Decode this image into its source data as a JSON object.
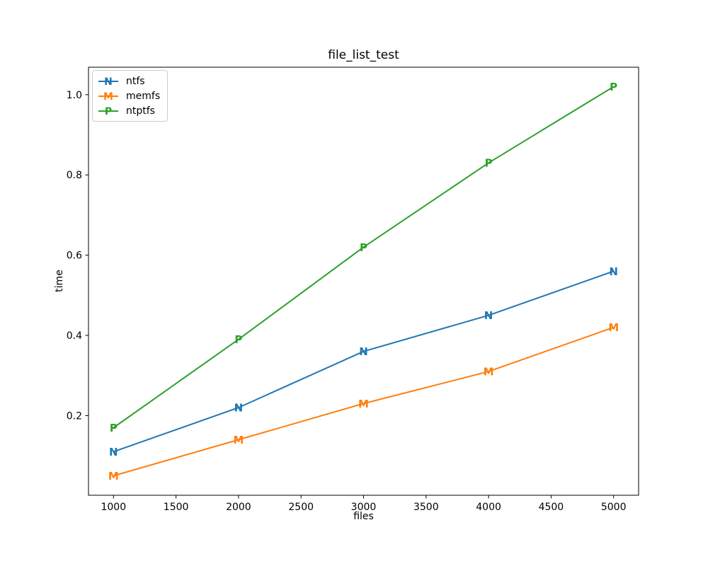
{
  "chart_data": {
    "type": "line",
    "title": "file_list_test",
    "xlabel": "files",
    "ylabel": "time",
    "x": [
      1000,
      2000,
      3000,
      4000,
      5000
    ],
    "series": [
      {
        "name": "ntfs",
        "marker": "N",
        "color": "#1f77b4",
        "values": [
          0.11,
          0.22,
          0.36,
          0.45,
          0.56
        ]
      },
      {
        "name": "memfs",
        "marker": "M",
        "color": "#ff7f0e",
        "values": [
          0.05,
          0.14,
          0.23,
          0.31,
          0.42
        ]
      },
      {
        "name": "ntptfs",
        "marker": "P",
        "color": "#2ca02c",
        "values": [
          0.17,
          0.39,
          0.62,
          0.83,
          1.02
        ]
      }
    ],
    "xlim": [
      800,
      5200
    ],
    "ylim": [
      0.0015,
      1.0685
    ],
    "xticks": [
      1000,
      1500,
      2000,
      2500,
      3000,
      3500,
      4000,
      4500,
      5000
    ],
    "xtick_labels": [
      "1000",
      "1500",
      "2000",
      "2500",
      "3000",
      "3500",
      "4000",
      "4500",
      "5000"
    ],
    "yticks": [
      0.2,
      0.4,
      0.6,
      0.8,
      1.0
    ],
    "ytick_labels": [
      "0.2",
      "0.4",
      "0.6",
      "0.8",
      "1.0"
    ],
    "legend_position": "upper left",
    "grid": false,
    "colors": {
      "background": "#ffffff",
      "spine": "#000000",
      "tick_label": "#000000",
      "legend_border": "#cccccc"
    }
  }
}
